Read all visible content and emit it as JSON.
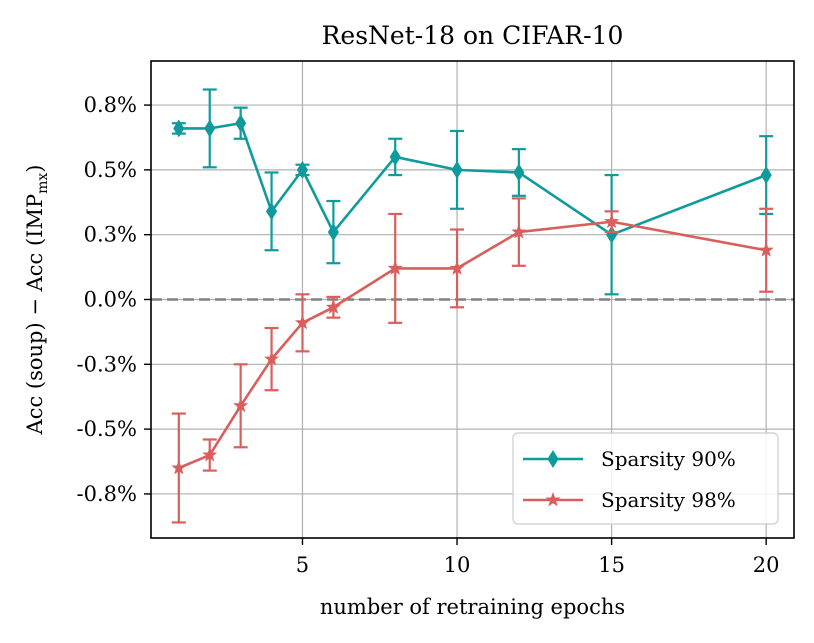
{
  "chart_data": {
    "type": "line",
    "title": "ResNet-18 on CIFAR-10",
    "xlabel": "number of retraining epochs",
    "ylabel": "Acc (soup) − Acc (IMP",
    "ylabel_subscript": "mx",
    "ylabel_close": ")",
    "xlim": [
      0.1,
      20.9
    ],
    "ylim": [
      -0.0092,
      0.0092
    ],
    "xticks": [
      5,
      10,
      15,
      20
    ],
    "xtick_labels": [
      "5",
      "10",
      "15",
      "20"
    ],
    "yticks": [
      0.0075,
      0.005,
      0.0025,
      0.0,
      -0.0025,
      -0.005,
      -0.0075
    ],
    "ytick_labels": [
      "0.8%",
      "0.5%",
      "0.3%",
      "0.0%",
      "-0.3%",
      "-0.5%",
      "-0.8%"
    ],
    "grid": true,
    "reference_line": {
      "y": 0.0,
      "style": "dashed"
    },
    "legend_position": "lower-right",
    "series": [
      {
        "name": "Sparsity 90%",
        "color": "#0f9b9b",
        "marker": "thin-diamond",
        "x": [
          1,
          2,
          3,
          4,
          5,
          6,
          8,
          10,
          12,
          15,
          20
        ],
        "y": [
          0.0066,
          0.0066,
          0.0068,
          0.0034,
          0.005,
          0.0026,
          0.0055,
          0.005,
          0.0049,
          0.0025,
          0.0048
        ],
        "err": [
          0.0002,
          0.0015,
          0.0006,
          0.0015,
          0.0002,
          0.0012,
          0.0007,
          0.0015,
          0.0009,
          0.0023,
          0.0015
        ]
      },
      {
        "name": "Sparsity 98%",
        "color": "#d95f5c",
        "marker": "star",
        "x": [
          1,
          2,
          3,
          4,
          5,
          6,
          8,
          10,
          12,
          15,
          20
        ],
        "y": [
          -0.0065,
          -0.006,
          -0.0041,
          -0.0023,
          -0.0009,
          -0.0003,
          0.0012,
          0.0012,
          0.0026,
          0.003,
          0.0019
        ],
        "err": [
          0.0021,
          0.0006,
          0.0016,
          0.0012,
          0.0011,
          0.0004,
          0.0021,
          0.0015,
          0.0013,
          0.0004,
          0.0016
        ]
      }
    ]
  }
}
